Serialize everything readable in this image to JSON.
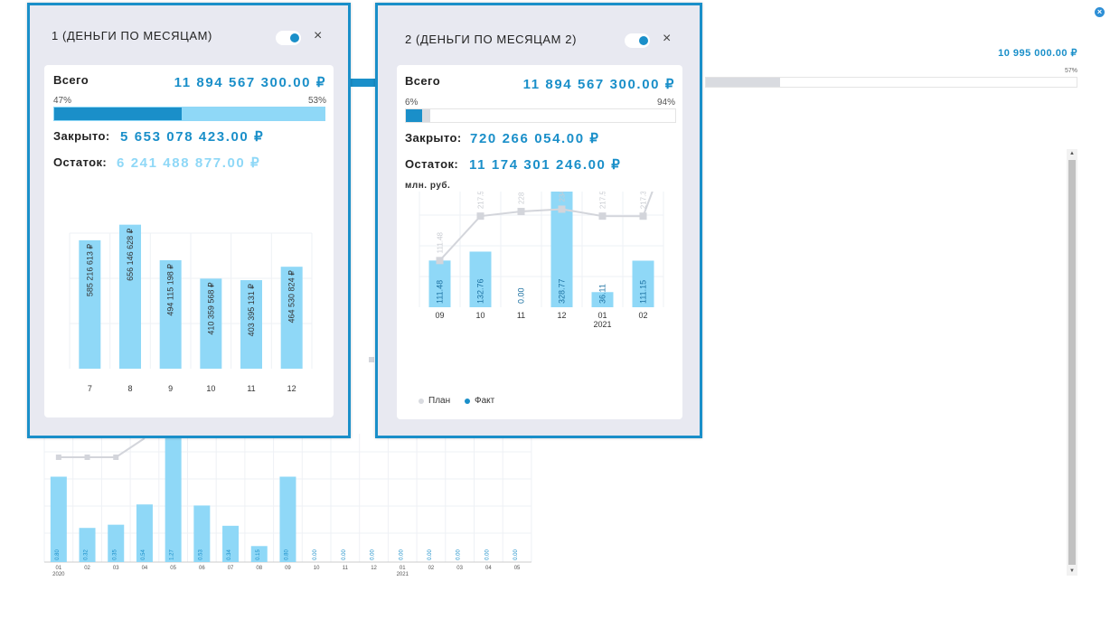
{
  "background": {
    "total": "10 995 000.00 ₽",
    "percent": "57%",
    "progress_pct": 57,
    "close_icon": "close-circle-icon",
    "chart_data": {
      "type": "bar",
      "categories": [
        "01",
        "02",
        "03",
        "04",
        "05",
        "06",
        "07",
        "08",
        "09",
        "10",
        "11",
        "12",
        "01",
        "02",
        "03",
        "04",
        "05"
      ],
      "year_labels": [
        "2020",
        "2021"
      ],
      "values": [
        0.8,
        0.32,
        0.35,
        0.54,
        1.27,
        0.53,
        0.34,
        0.15,
        0.8,
        0.0,
        0.0,
        0.0,
        0.0,
        0.0,
        0.0,
        0.0,
        0.0
      ],
      "value_labels": [
        "0.80",
        "0.32",
        "0.35",
        "0.54",
        "1.27",
        "0.53",
        "0.34",
        "0.15",
        "0.80",
        "0.00",
        "0.00",
        "0.00",
        "0.00",
        "0.00",
        "0.00",
        "0.00",
        "0.00"
      ]
    }
  },
  "panel1": {
    "title": "1 (ДЕНЬГИ ПО МЕСЯЦАМ)",
    "total_label": "Всего",
    "total_value": "11 894 567 300.00 ₽",
    "pct_left": "47%",
    "pct_right": "53%",
    "closed_pct": 47,
    "closed_label": "Закрыто:",
    "closed_value": "5 653 078 423.00 ₽",
    "remaining_label": "Остаток:",
    "remaining_value": "6 241 488 877.00 ₽",
    "colors": {
      "closed": "#1a8fc9",
      "remaining": "#8fd8f7"
    },
    "chart_data": {
      "type": "bar",
      "categories": [
        "7",
        "8",
        "9",
        "10",
        "11",
        "12"
      ],
      "values": [
        585216613,
        656146628,
        494115198,
        410359568,
        403395131,
        464530824
      ],
      "value_labels": [
        "585 216 613 ₽",
        "656 146 628 ₽",
        "494 115 198 ₽",
        "410 359 568 ₽",
        "403 395 131 ₽",
        "464 530 824 ₽"
      ]
    }
  },
  "panel2": {
    "title": "2 (ДЕНЬГИ ПО МЕСЯЦАМ 2)",
    "total_label": "Всего",
    "total_value": "11 894 567 300.00 ₽",
    "pct_left": "6%",
    "pct_right": "94%",
    "closed_pct": 6,
    "closed_label": "Закрыто:",
    "closed_value": "720 266 054.00 ₽",
    "remaining_label": "Остаток:",
    "remaining_value": "11 174 301 246.00 ₽",
    "unit": "млн. руб.",
    "legend": {
      "plan": "План",
      "fact": "Факт"
    },
    "colors": {
      "closed": "#1a8fc9",
      "remaining": "#d9dbe0"
    },
    "chart_data": {
      "type": "bar",
      "categories": [
        "09",
        "10",
        "11",
        "12",
        "01",
        "02"
      ],
      "year_labels": [
        "2021"
      ],
      "series": [
        {
          "name": "Факт",
          "type": "bar",
          "values": [
            111.48,
            132.76,
            0.0,
            328.77,
            36.11,
            111.15
          ],
          "value_labels": [
            "111.48",
            "132.76",
            "0.00",
            "328.77",
            "36.11",
            "111.15"
          ]
        },
        {
          "name": "План",
          "type": "line",
          "values": [
            111.48,
            217.52,
            228.52,
            234.11,
            217.52,
            217.36
          ],
          "value_labels": [
            "111.48",
            "217.52",
            "228.52",
            "234.11",
            "217.52",
            "217.36"
          ]
        }
      ]
    }
  }
}
